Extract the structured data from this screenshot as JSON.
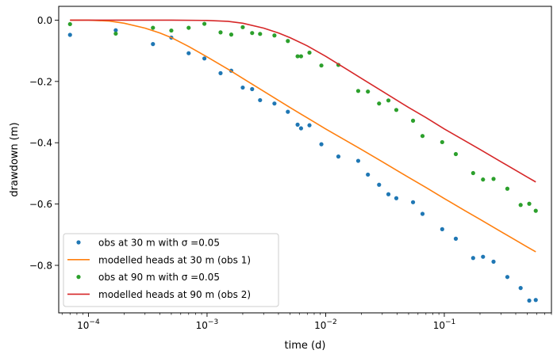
{
  "chart_data": {
    "type": "scatter",
    "title": "",
    "xlabel": "time (d)",
    "ylabel": "drawdown (m)",
    "xscale": "log",
    "xlim": [
      5.62e-05,
      0.8
    ],
    "ylim": [
      -0.955,
      0.045
    ],
    "x_ticks": [
      {
        "value": 0.0001,
        "base": "10",
        "exp": "−4"
      },
      {
        "value": 0.001,
        "base": "10",
        "exp": "−3"
      },
      {
        "value": 0.01,
        "base": "10",
        "exp": "−2"
      },
      {
        "value": 0.1,
        "base": "10",
        "exp": "−1"
      }
    ],
    "y_ticks": [
      {
        "value": 0.0,
        "label": "0.0"
      },
      {
        "value": -0.2,
        "label": "−0.2"
      },
      {
        "value": -0.4,
        "label": "−0.4"
      },
      {
        "value": -0.6,
        "label": "−0.6"
      },
      {
        "value": -0.8,
        "label": "−0.8"
      }
    ],
    "grid": false,
    "legend_position": "lower-left",
    "series": [
      {
        "name": "obs at 30 m with σ =0.05",
        "kind": "points",
        "color": "#1f77b4",
        "x": [
          7e-05,
          0.00017,
          0.00035,
          0.0005,
          0.0007,
          0.00095,
          0.0013,
          0.0016,
          0.002,
          0.0024,
          0.0028,
          0.0037,
          0.0048,
          0.0058,
          0.0062,
          0.0073,
          0.0092,
          0.0128,
          0.0188,
          0.0227,
          0.0282,
          0.0338,
          0.0394,
          0.0545,
          0.0655,
          0.096,
          0.125,
          0.175,
          0.212,
          0.26,
          0.34,
          0.44,
          0.52,
          0.59
        ],
        "y": [
          -0.048,
          -0.033,
          -0.078,
          -0.057,
          -0.108,
          -0.125,
          -0.173,
          -0.165,
          -0.22,
          -0.225,
          -0.261,
          -0.272,
          -0.299,
          -0.341,
          -0.353,
          -0.343,
          -0.405,
          -0.445,
          -0.459,
          -0.504,
          -0.537,
          -0.568,
          -0.581,
          -0.594,
          -0.632,
          -0.682,
          -0.713,
          -0.776,
          -0.772,
          -0.788,
          -0.838,
          -0.874,
          -0.915,
          -0.913
        ]
      },
      {
        "name": "modelled heads at 30 m (obs 1)",
        "kind": "line",
        "color": "#ff7f0e",
        "x": [
          7e-05,
          0.0001,
          0.00015,
          0.0002,
          0.0003,
          0.0004,
          0.0005,
          0.0007,
          0.001,
          0.0015,
          0.002,
          0.003,
          0.005,
          0.007,
          0.01,
          0.015,
          0.02,
          0.03,
          0.05,
          0.07,
          0.1,
          0.15,
          0.2,
          0.3,
          0.4,
          0.5,
          0.59
        ],
        "y": [
          0.0,
          0.0,
          -0.003,
          -0.01,
          -0.026,
          -0.042,
          -0.057,
          -0.086,
          -0.12,
          -0.16,
          -0.19,
          -0.232,
          -0.285,
          -0.319,
          -0.355,
          -0.394,
          -0.422,
          -0.462,
          -0.513,
          -0.546,
          -0.582,
          -0.622,
          -0.65,
          -0.69,
          -0.718,
          -0.74,
          -0.756
        ]
      },
      {
        "name": "obs at 90 m with σ =0.05",
        "kind": "points",
        "color": "#2ca02c",
        "x": [
          7e-05,
          0.00017,
          0.00035,
          0.0005,
          0.0007,
          0.00095,
          0.0013,
          0.0016,
          0.002,
          0.0024,
          0.0028,
          0.0037,
          0.0048,
          0.0058,
          0.0062,
          0.0073,
          0.0092,
          0.0128,
          0.0188,
          0.0227,
          0.0282,
          0.0338,
          0.0394,
          0.0545,
          0.0655,
          0.096,
          0.125,
          0.175,
          0.212,
          0.26,
          0.34,
          0.44,
          0.52,
          0.59
        ],
        "y": [
          -0.013,
          -0.044,
          -0.025,
          -0.034,
          -0.025,
          -0.012,
          -0.04,
          -0.047,
          -0.023,
          -0.042,
          -0.045,
          -0.05,
          -0.068,
          -0.118,
          -0.118,
          -0.106,
          -0.148,
          -0.146,
          -0.231,
          -0.233,
          -0.272,
          -0.262,
          -0.293,
          -0.328,
          -0.378,
          -0.398,
          -0.437,
          -0.499,
          -0.52,
          -0.518,
          -0.55,
          -0.603,
          -0.599,
          -0.622
        ]
      },
      {
        "name": "modelled heads at 90 m (obs 2)",
        "kind": "line",
        "color": "#d62728",
        "x": [
          7e-05,
          0.0002,
          0.0005,
          0.001,
          0.0015,
          0.002,
          0.003,
          0.004,
          0.005,
          0.007,
          0.01,
          0.015,
          0.02,
          0.03,
          0.05,
          0.07,
          0.1,
          0.15,
          0.2,
          0.3,
          0.4,
          0.5,
          0.59
        ],
        "y": [
          0.0,
          0.0,
          0.0,
          -0.001,
          -0.004,
          -0.01,
          -0.026,
          -0.042,
          -0.057,
          -0.084,
          -0.118,
          -0.16,
          -0.19,
          -0.232,
          -0.285,
          -0.318,
          -0.355,
          -0.394,
          -0.422,
          -0.462,
          -0.49,
          -0.512,
          -0.528
        ]
      }
    ]
  }
}
